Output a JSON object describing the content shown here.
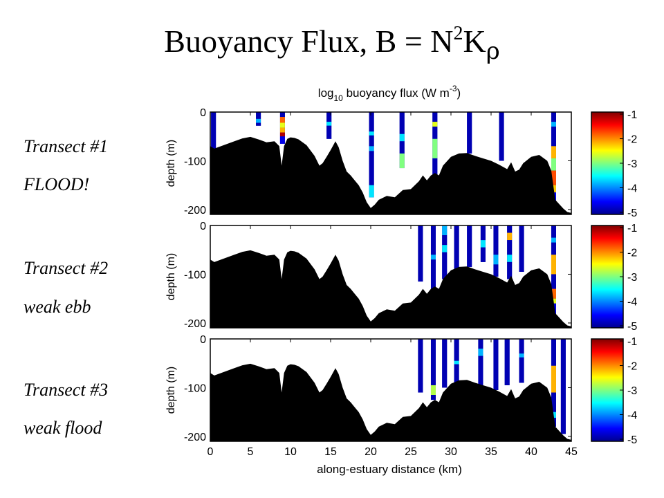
{
  "slide": {
    "title_main": "Buoyancy Flux, B = N",
    "title_sup": "2",
    "title_k": "K",
    "title_sub": "ρ"
  },
  "labels": [
    {
      "line1": "Transect #1",
      "line2": "FLOOD!"
    },
    {
      "line1": "Transect #2",
      "line2": "weak ebb"
    },
    {
      "line1": "Transect #3",
      "line2": "weak flood"
    }
  ],
  "chart_data": {
    "type": "heatmap",
    "title": {
      "prefix": "log",
      "sub": "10",
      "main": " buoyancy flux (W m",
      "sup": "-3",
      "end": ")"
    },
    "xlabel": "along-estuary distance (km)",
    "ylabel": "depth (m)",
    "xlim": [
      0,
      45
    ],
    "ylim": [
      -210,
      0
    ],
    "xticks": [
      "0",
      "5",
      "10",
      "15",
      "20",
      "25",
      "30",
      "35",
      "40",
      "45"
    ],
    "yticks": [
      "0",
      "-100",
      "-200"
    ],
    "colorbar": {
      "range": [
        -5,
        -1
      ],
      "ticks": [
        "-1",
        "-2",
        "-3",
        "-4",
        "-5"
      ]
    },
    "colors": {
      "land": "#000000",
      "low_flux": "#0a14a8",
      "colormap": "jet"
    },
    "bathymetry": {
      "x": [
        0,
        0.5,
        1,
        2,
        3,
        4,
        5,
        6,
        7,
        8,
        8.6,
        8.9,
        9.2,
        9.6,
        10,
        10.5,
        11,
        12,
        13,
        13.6,
        14,
        14.5,
        15,
        15.6,
        16,
        16.5,
        17,
        17.5,
        18,
        18.5,
        19,
        19.5,
        20,
        20.5,
        21,
        22,
        23,
        24,
        25,
        25.5,
        26,
        26.5,
        27,
        27.5,
        28,
        28.5,
        29,
        30,
        31,
        32,
        33,
        34,
        35,
        36,
        37,
        37.5,
        38,
        38.5,
        39,
        40,
        41,
        42,
        42.5,
        43,
        44,
        44.5,
        45
      ],
      "depth": [
        -70,
        -75,
        -72,
        -66,
        -60,
        -54,
        -51,
        -56,
        -62,
        -60,
        -70,
        -110,
        -70,
        -55,
        -52,
        -53,
        -56,
        -68,
        -90,
        -110,
        -105,
        -92,
        -78,
        -60,
        -72,
        -100,
        -122,
        -130,
        -140,
        -150,
        -165,
        -185,
        -197,
        -190,
        -180,
        -172,
        -175,
        -160,
        -158,
        -150,
        -142,
        -130,
        -140,
        -130,
        -125,
        -130,
        -110,
        -92,
        -85,
        -84,
        -90,
        -95,
        -100,
        -108,
        -117,
        -103,
        -122,
        -118,
        -105,
        -92,
        -88,
        -100,
        -120,
        -180,
        -198,
        -205,
        -207
      ]
    },
    "panels": [
      {
        "name": "Transect #1",
        "casts": [
          {
            "x": 0.4,
            "bottom": -75,
            "cells": [
              {
                "from": 0,
                "to": -75,
                "v": -4.8
              }
            ]
          },
          {
            "x": 6.0,
            "bottom": -28,
            "cells": [
              {
                "from": 0,
                "to": -14,
                "v": -4.8
              },
              {
                "from": -14,
                "to": -22,
                "v": -3.8
              },
              {
                "from": -22,
                "to": -28,
                "v": -4.8
              }
            ]
          },
          {
            "x": 9.0,
            "bottom": -65,
            "cells": [
              {
                "from": 0,
                "to": -10,
                "v": -4.8
              },
              {
                "from": -10,
                "to": -22,
                "v": -1.9
              },
              {
                "from": -22,
                "to": -32,
                "v": -2.6
              },
              {
                "from": -32,
                "to": -42,
                "v": -2.2
              },
              {
                "from": -42,
                "to": -50,
                "v": -1.2
              },
              {
                "from": -50,
                "to": -65,
                "v": -4.6
              }
            ]
          },
          {
            "x": 14.8,
            "bottom": -55,
            "cells": [
              {
                "from": 0,
                "to": -20,
                "v": -4.8
              },
              {
                "from": -20,
                "to": -28,
                "v": -3.6
              },
              {
                "from": -28,
                "to": -55,
                "v": -4.8
              }
            ]
          },
          {
            "x": 20.1,
            "bottom": -175,
            "cells": [
              {
                "from": 0,
                "to": -40,
                "v": -4.8
              },
              {
                "from": -40,
                "to": -48,
                "v": -3.6
              },
              {
                "from": -48,
                "to": -70,
                "v": -4.8
              },
              {
                "from": -70,
                "to": -80,
                "v": -3.8
              },
              {
                "from": -80,
                "to": -150,
                "v": -4.8
              },
              {
                "from": -150,
                "to": -175,
                "v": -3.6
              }
            ]
          },
          {
            "x": 23.9,
            "bottom": -115,
            "cells": [
              {
                "from": 0,
                "to": -45,
                "v": -4.8
              },
              {
                "from": -45,
                "to": -60,
                "v": -3.6
              },
              {
                "from": -60,
                "to": -85,
                "v": -4.8
              },
              {
                "from": -85,
                "to": -115,
                "v": -3.0
              }
            ]
          },
          {
            "x": 28.0,
            "bottom": -130,
            "cells": [
              {
                "from": 0,
                "to": -20,
                "v": -4.8
              },
              {
                "from": -20,
                "to": -30,
                "v": -2.6
              },
              {
                "from": -30,
                "to": -55,
                "v": -4.8
              },
              {
                "from": -55,
                "to": -95,
                "v": -3.0
              },
              {
                "from": -95,
                "to": -130,
                "v": -4.8
              }
            ]
          },
          {
            "x": 32.3,
            "bottom": -85,
            "cells": [
              {
                "from": 0,
                "to": -85,
                "v": -4.8
              }
            ]
          },
          {
            "x": 36.3,
            "bottom": -100,
            "cells": [
              {
                "from": 0,
                "to": -100,
                "v": -4.8
              }
            ]
          },
          {
            "x": 42.8,
            "bottom": -190,
            "cells": [
              {
                "from": 0,
                "to": -20,
                "v": -4.8
              },
              {
                "from": -20,
                "to": -30,
                "v": -3.8
              },
              {
                "from": -30,
                "to": -70,
                "v": -4.8
              },
              {
                "from": -70,
                "to": -95,
                "v": -2.2
              },
              {
                "from": -95,
                "to": -120,
                "v": -3.0
              },
              {
                "from": -120,
                "to": -150,
                "v": -1.8
              },
              {
                "from": -150,
                "to": -165,
                "v": -2.3
              },
              {
                "from": -165,
                "to": -190,
                "v": -4.5
              }
            ]
          }
        ]
      },
      {
        "name": "Transect #2",
        "casts": [
          {
            "x": 26.2,
            "bottom": -115,
            "cells": [
              {
                "from": 0,
                "to": -115,
                "v": -4.8
              }
            ]
          },
          {
            "x": 27.8,
            "bottom": -130,
            "cells": [
              {
                "from": 0,
                "to": -60,
                "v": -4.8
              },
              {
                "from": -60,
                "to": -70,
                "v": -3.8
              },
              {
                "from": -70,
                "to": -130,
                "v": -4.8
              }
            ]
          },
          {
            "x": 29.2,
            "bottom": -110,
            "cells": [
              {
                "from": 0,
                "to": -20,
                "v": -3.8
              },
              {
                "from": -20,
                "to": -40,
                "v": -4.8
              },
              {
                "from": -40,
                "to": -55,
                "v": -3.6
              },
              {
                "from": -55,
                "to": -110,
                "v": -4.8
              }
            ]
          },
          {
            "x": 30.7,
            "bottom": -100,
            "cells": [
              {
                "from": 0,
                "to": -100,
                "v": -4.8
              }
            ]
          },
          {
            "x": 32.3,
            "bottom": -85,
            "cells": [
              {
                "from": 0,
                "to": -85,
                "v": -4.8
              }
            ]
          },
          {
            "x": 34.0,
            "bottom": -75,
            "cells": [
              {
                "from": 0,
                "to": -30,
                "v": -4.8
              },
              {
                "from": -30,
                "to": -45,
                "v": -3.6
              },
              {
                "from": -45,
                "to": -75,
                "v": -4.8
              }
            ]
          },
          {
            "x": 35.6,
            "bottom": -105,
            "cells": [
              {
                "from": 0,
                "to": -60,
                "v": -4.8
              },
              {
                "from": -60,
                "to": -80,
                "v": -3.8
              },
              {
                "from": -80,
                "to": -105,
                "v": -4.8
              }
            ]
          },
          {
            "x": 37.3,
            "bottom": -110,
            "cells": [
              {
                "from": 0,
                "to": -15,
                "v": -4.8
              },
              {
                "from": -15,
                "to": -30,
                "v": -2.2
              },
              {
                "from": -30,
                "to": -60,
                "v": -4.8
              },
              {
                "from": -60,
                "to": -75,
                "v": -3.6
              },
              {
                "from": -75,
                "to": -110,
                "v": -4.8
              }
            ]
          },
          {
            "x": 38.8,
            "bottom": -95,
            "cells": [
              {
                "from": 0,
                "to": -95,
                "v": -4.8
              }
            ]
          },
          {
            "x": 42.8,
            "bottom": -190,
            "cells": [
              {
                "from": 0,
                "to": -25,
                "v": -4.8
              },
              {
                "from": -25,
                "to": -35,
                "v": -3.8
              },
              {
                "from": -35,
                "to": -60,
                "v": -4.8
              },
              {
                "from": -60,
                "to": -100,
                "v": -2.2
              },
              {
                "from": -100,
                "to": -130,
                "v": -4.8
              },
              {
                "from": -130,
                "to": -150,
                "v": -1.9
              },
              {
                "from": -150,
                "to": -160,
                "v": -2.6
              },
              {
                "from": -160,
                "to": -190,
                "v": -4.6
              }
            ]
          }
        ]
      },
      {
        "name": "Transect #3",
        "casts": [
          {
            "x": 26.2,
            "bottom": -110,
            "cells": [
              {
                "from": 0,
                "to": -110,
                "v": -4.8
              }
            ]
          },
          {
            "x": 27.8,
            "bottom": -125,
            "cells": [
              {
                "from": 0,
                "to": -95,
                "v": -4.8
              },
              {
                "from": -95,
                "to": -115,
                "v": -2.8
              },
              {
                "from": -115,
                "to": -125,
                "v": -4.8
              }
            ]
          },
          {
            "x": 29.2,
            "bottom": -100,
            "cells": [
              {
                "from": 0,
                "to": -100,
                "v": -4.8
              }
            ]
          },
          {
            "x": 30.7,
            "bottom": -100,
            "cells": [
              {
                "from": 0,
                "to": -45,
                "v": -4.8
              },
              {
                "from": -45,
                "to": -52,
                "v": -3.6
              },
              {
                "from": -52,
                "to": -100,
                "v": -4.8
              }
            ]
          },
          {
            "x": 33.7,
            "bottom": -110,
            "cells": [
              {
                "from": 0,
                "to": -20,
                "v": -4.8
              },
              {
                "from": -20,
                "to": -35,
                "v": -3.8
              },
              {
                "from": -35,
                "to": -110,
                "v": -4.8
              }
            ]
          },
          {
            "x": 35.6,
            "bottom": -105,
            "cells": [
              {
                "from": 0,
                "to": -105,
                "v": -4.8
              }
            ]
          },
          {
            "x": 37.0,
            "bottom": -95,
            "cells": [
              {
                "from": 0,
                "to": -95,
                "v": -4.8
              }
            ]
          },
          {
            "x": 38.8,
            "bottom": -90,
            "cells": [
              {
                "from": 0,
                "to": -30,
                "v": -4.8
              },
              {
                "from": -30,
                "to": -38,
                "v": -3.8
              },
              {
                "from": -38,
                "to": -90,
                "v": -4.8
              }
            ]
          },
          {
            "x": 42.8,
            "bottom": -180,
            "cells": [
              {
                "from": 0,
                "to": -55,
                "v": -4.8
              },
              {
                "from": -55,
                "to": -110,
                "v": -2.2
              },
              {
                "from": -110,
                "to": -150,
                "v": -4.8
              },
              {
                "from": -150,
                "to": -162,
                "v": -3.6
              },
              {
                "from": -162,
                "to": -180,
                "v": -4.8
              }
            ]
          },
          {
            "x": 44.0,
            "bottom": -195,
            "cells": [
              {
                "from": 0,
                "to": -195,
                "v": -4.8
              }
            ]
          }
        ]
      }
    ]
  }
}
